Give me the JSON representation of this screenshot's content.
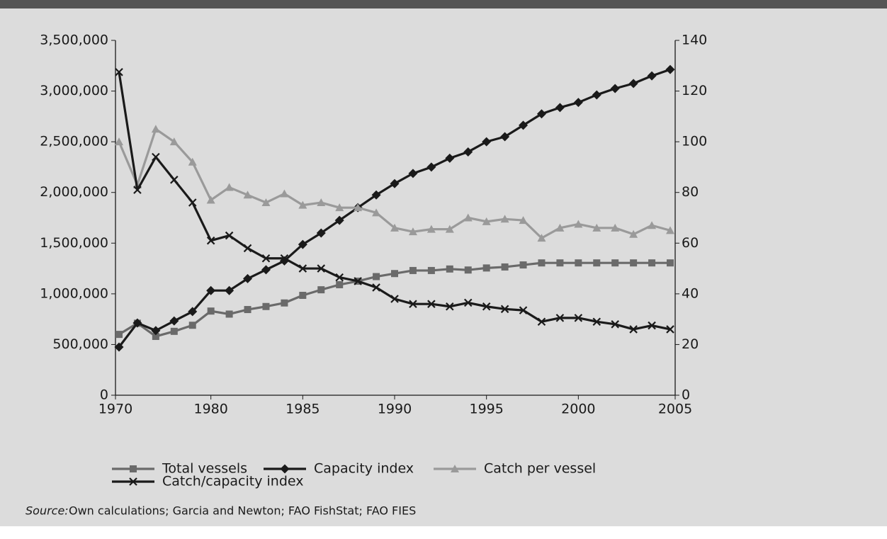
{
  "chart_data": {
    "type": "line",
    "categories": [
      "1970",
      null,
      null,
      null,
      null,
      "1980",
      null,
      null,
      null,
      null,
      "1985",
      null,
      null,
      null,
      null,
      "1990",
      null,
      null,
      null,
      null,
      "1995",
      null,
      null,
      null,
      null,
      "2000",
      null,
      null,
      null,
      null,
      "2005"
    ],
    "ylim": [
      0,
      3500000
    ],
    "yticks": [
      0,
      {
        "value": 500000,
        "label": "500,000"
      },
      {
        "value": 1000000,
        "label": "1,000,000"
      },
      {
        "value": 1500000,
        "label": "1,500,000"
      },
      {
        "value": 2000000,
        "label": "2,000,000"
      },
      {
        "value": 2500000,
        "label": "2,500,000"
      },
      {
        "value": 3000000,
        "label": "3,000,000"
      },
      {
        "value": 3500000,
        "label": "3,500,000"
      }
    ],
    "y2lim": [
      0,
      140
    ],
    "y2ticks": [
      0,
      20,
      40,
      60,
      80,
      100,
      120,
      140
    ],
    "grid": false,
    "series": [
      {
        "name": "Total vessels",
        "color": "#6a6a6a",
        "marker": "square",
        "values": [
          600000,
          710000,
          580000,
          630000,
          690000,
          830000,
          800000,
          845000,
          875000,
          910000,
          985000,
          1040000,
          1090000,
          1125000,
          1170000,
          1200000,
          1230000,
          1230000,
          1245000,
          1235000,
          1255000,
          1265000,
          1285000,
          1305000,
          1305000,
          1305000,
          1305000,
          1305000,
          1305000,
          1305000,
          1305000
        ]
      },
      {
        "name": "Capacity index",
        "color": "#1a1a1a",
        "marker": "diamond",
        "axis": "y2",
        "values": [
          19,
          28.5,
          25.5,
          29.3,
          33,
          41.3,
          41.3,
          46,
          49.5,
          53,
          59.5,
          64,
          69,
          74,
          79,
          83.5,
          87.5,
          90,
          93.5,
          96,
          100,
          102,
          106.5,
          111,
          113.5,
          115.5,
          118.5,
          121,
          123,
          126,
          128.5
        ]
      },
      {
        "name": "Catch per vessel",
        "color": "#9a9a9a",
        "marker": "triangle",
        "axis": "y2",
        "values": [
          100,
          83,
          105,
          100,
          92,
          77,
          82,
          79,
          76,
          79.5,
          75,
          76,
          74,
          74,
          72,
          66,
          64.5,
          65.5,
          65.5,
          70,
          68.5,
          69.5,
          69,
          62,
          66,
          67.5,
          66,
          66,
          63.5,
          67,
          65
        ]
      },
      {
        "name": "Catch/capacity index",
        "color": "#1a1a1a",
        "marker": "x",
        "axis": "y2",
        "values": [
          127.5,
          81,
          94,
          85,
          76,
          61,
          63,
          58,
          54,
          54,
          50,
          50,
          46.5,
          45,
          42.5,
          38,
          36,
          36,
          35,
          36.5,
          35,
          34,
          33.5,
          29,
          30.5,
          30.5,
          29,
          28,
          26,
          27.5,
          26
        ]
      }
    ],
    "note_label": "Source:",
    "note": "Own calculations; Garcia and Newton; FAO FishStat; FAO FIES"
  }
}
